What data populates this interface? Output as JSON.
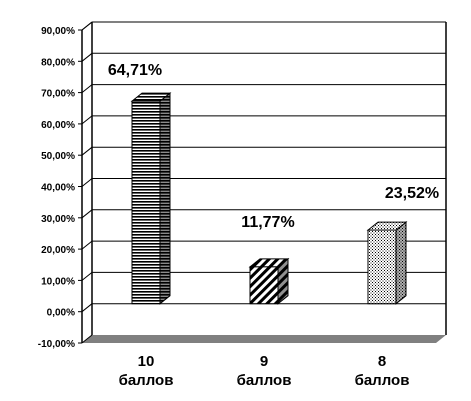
{
  "chart_data": {
    "type": "bar",
    "categories": [
      [
        "10",
        "баллов"
      ],
      [
        "9",
        "баллов"
      ],
      [
        "8",
        "баллов"
      ]
    ],
    "values": [
      64.71,
      11.77,
      23.52
    ],
    "data_labels": [
      "64,71%",
      "11,77%",
      "23,52%"
    ],
    "ylim": [
      -10,
      90
    ],
    "ytick_step": 10,
    "ytick_labels": [
      "-10,00%",
      "0,00%",
      "10,00%",
      "20,00%",
      "30,00%",
      "40,00%",
      "50,00%",
      "60,00%",
      "70,00%",
      "80,00%",
      "90,00%"
    ],
    "grid": true,
    "legend": false,
    "style": "3d",
    "bar_patterns": [
      "horizontal-lines",
      "diagonal-stripes",
      "dots"
    ],
    "colors": {
      "axis": "#000000",
      "floor": "#808080",
      "grid": "#000000",
      "background": "#ffffff"
    }
  }
}
